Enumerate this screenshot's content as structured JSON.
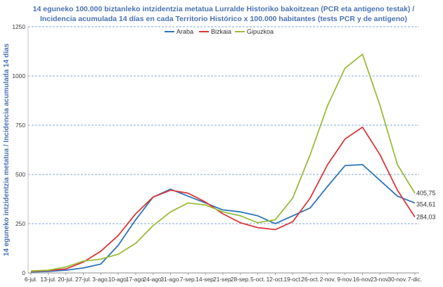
{
  "chart_data": {
    "type": "line",
    "title": "14 eguneko 100.000 biztanleko intzidentzia metatua Lurralde Historiko bakoitzean (PCR eta antigeno  testak) / Incidencia acumulada  14 días en cada Territorio Histórico x 100.000 habitantes (tests PCR y de antígeno)",
    "title_lines": [
      "14 eguneko 100.000 biztanleko intzidentzia metatua Lurralde Historiko bakoitzean (PCR eta antigeno  testak) /",
      "Incidencia acumulada  14 días en cada Territorio Histórico x 100.000 habitantes (tests PCR y de antígeno)"
    ],
    "ylabel": "14 eguneko intzidentzia metatua / Incidencia acumulada 14 días",
    "xlabel": "",
    "ylim": [
      0,
      1250
    ],
    "yticks": [
      "0",
      "250",
      "500",
      "750",
      "1000",
      "1250"
    ],
    "grid": "horizontal dashed",
    "legend_position": "top",
    "categories": [
      "6-jul.",
      "13-jul.",
      "20-jul.",
      "27-jul.",
      "3-ago.",
      "10-ago.",
      "17-ago.",
      "24-ago.",
      "31-ago.",
      "7-sep.",
      "14-sep.",
      "21-sep.",
      "28-sep.",
      "5-oct.",
      "12-oct.",
      "19-oct.",
      "26-oct.",
      "2-nov.",
      "9-nov.",
      "16-nov.",
      "23-nov.",
      "30-nov.",
      "7-dic."
    ],
    "series": [
      {
        "name": "Araba",
        "color": "#2e75b6",
        "end_label": "354,61",
        "values": [
          5,
          8,
          14,
          25,
          45,
          140,
          270,
          385,
          425,
          390,
          355,
          320,
          310,
          290,
          250,
          290,
          330,
          440,
          545,
          550,
          470,
          390,
          355
        ]
      },
      {
        "name": "Bizkaia",
        "color": "#d9383a",
        "end_label": "284,03",
        "values": [
          8,
          12,
          20,
          55,
          110,
          190,
          300,
          385,
          420,
          405,
          360,
          300,
          255,
          230,
          220,
          260,
          380,
          550,
          680,
          740,
          600,
          420,
          284
        ]
      },
      {
        "name": "Gipuzkoa",
        "color": "#9bbb3b",
        "end_label": "405,75",
        "values": [
          10,
          14,
          30,
          60,
          70,
          95,
          150,
          240,
          310,
          355,
          345,
          310,
          290,
          255,
          270,
          380,
          600,
          850,
          1040,
          1110,
          850,
          550,
          405
        ]
      }
    ]
  }
}
